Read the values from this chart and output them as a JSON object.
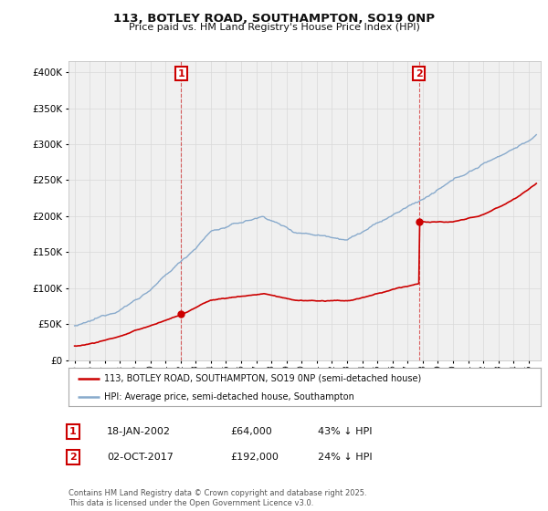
{
  "title": "113, BOTLEY ROAD, SOUTHAMPTON, SO19 0NP",
  "subtitle": "Price paid vs. HM Land Registry's House Price Index (HPI)",
  "ytick_vals": [
    0,
    50000,
    100000,
    150000,
    200000,
    250000,
    300000,
    350000,
    400000
  ],
  "ylim": [
    0,
    415000
  ],
  "xlim_start": 1994.6,
  "xlim_end": 2025.8,
  "legend_line1": "113, BOTLEY ROAD, SOUTHAMPTON, SO19 0NP (semi-detached house)",
  "legend_line2": "HPI: Average price, semi-detached house, Southampton",
  "red_color": "#cc0000",
  "blue_color": "#88aacc",
  "point1_x": 2002.05,
  "point1_y": 64000,
  "point2_x": 2017.75,
  "point2_y": 192000,
  "point1_label": "1",
  "point2_label": "2",
  "table": [
    {
      "num": "1",
      "date": "18-JAN-2002",
      "price": "£64,000",
      "hpi": "43% ↓ HPI"
    },
    {
      "num": "2",
      "date": "02-OCT-2017",
      "price": "£192,000",
      "hpi": "24% ↓ HPI"
    }
  ],
  "copyright": "Contains HM Land Registry data © Crown copyright and database right 2025.\nThis data is licensed under the Open Government Licence v3.0.",
  "bg_color": "#ffffff",
  "plot_bg_color": "#f0f0f0",
  "grid_color": "#d8d8d8"
}
